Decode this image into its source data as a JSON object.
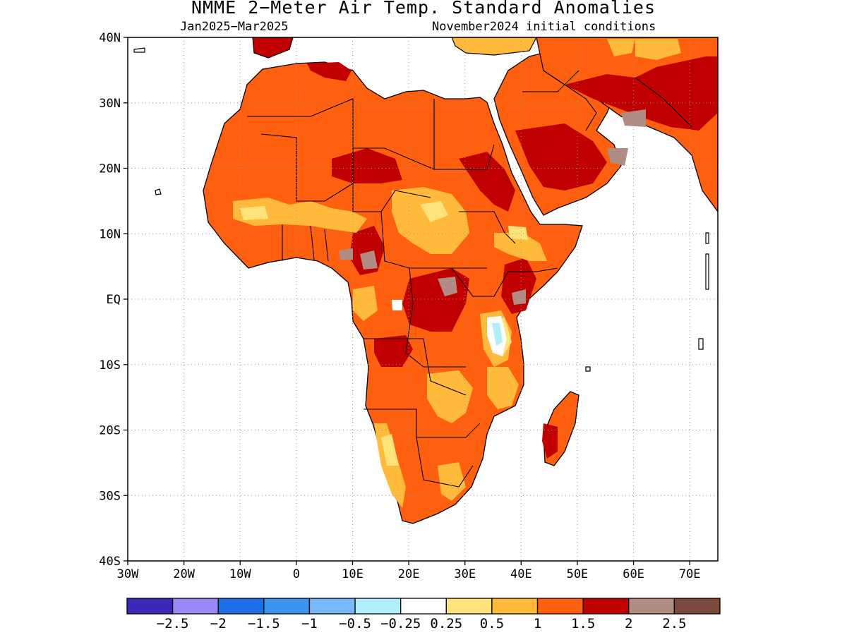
{
  "title": "NMME 2−Meter Air Temp. Standard Anomalies",
  "subtitle_left": "Jan2025−Mar2025",
  "subtitle_right": "November2024 initial conditions",
  "axes": {
    "lat_labels": [
      "40N",
      "30N",
      "20N",
      "10N",
      "EQ",
      "10S",
      "20S",
      "30S",
      "40S"
    ],
    "lon_labels": [
      "30W",
      "20W",
      "10W",
      "0",
      "10E",
      "20E",
      "30E",
      "40E",
      "50E",
      "60E",
      "70E"
    ],
    "lon_range": [
      -30,
      75
    ],
    "lat_range": [
      -40,
      40
    ],
    "grid": "dotted"
  },
  "colorbar": {
    "colors": [
      "#3a28b8",
      "#9a88f4",
      "#1e6ee8",
      "#3c96f0",
      "#78b8f8",
      "#b0eefa",
      "#ffffff",
      "#ffe27a",
      "#ffba3c",
      "#ff6010",
      "#c00000",
      "#b08c84",
      "#7a4a3c"
    ],
    "labels": [
      "−2.5",
      "−2",
      "−1.5",
      "−1",
      "−0.5",
      "−0.25",
      "0.25",
      "0.5",
      "1",
      "1.5",
      "2",
      "2.5"
    ]
  },
  "legend_categories": {
    "near_normal": "#ffffff",
    "plus_0_25": "#ffe27a",
    "plus_0_5": "#ffba3c",
    "plus_1": "#ff6010",
    "plus_1_5": "#c00000",
    "plus_2": "#b08c84",
    "minus_0_25": "#b0eefa"
  }
}
